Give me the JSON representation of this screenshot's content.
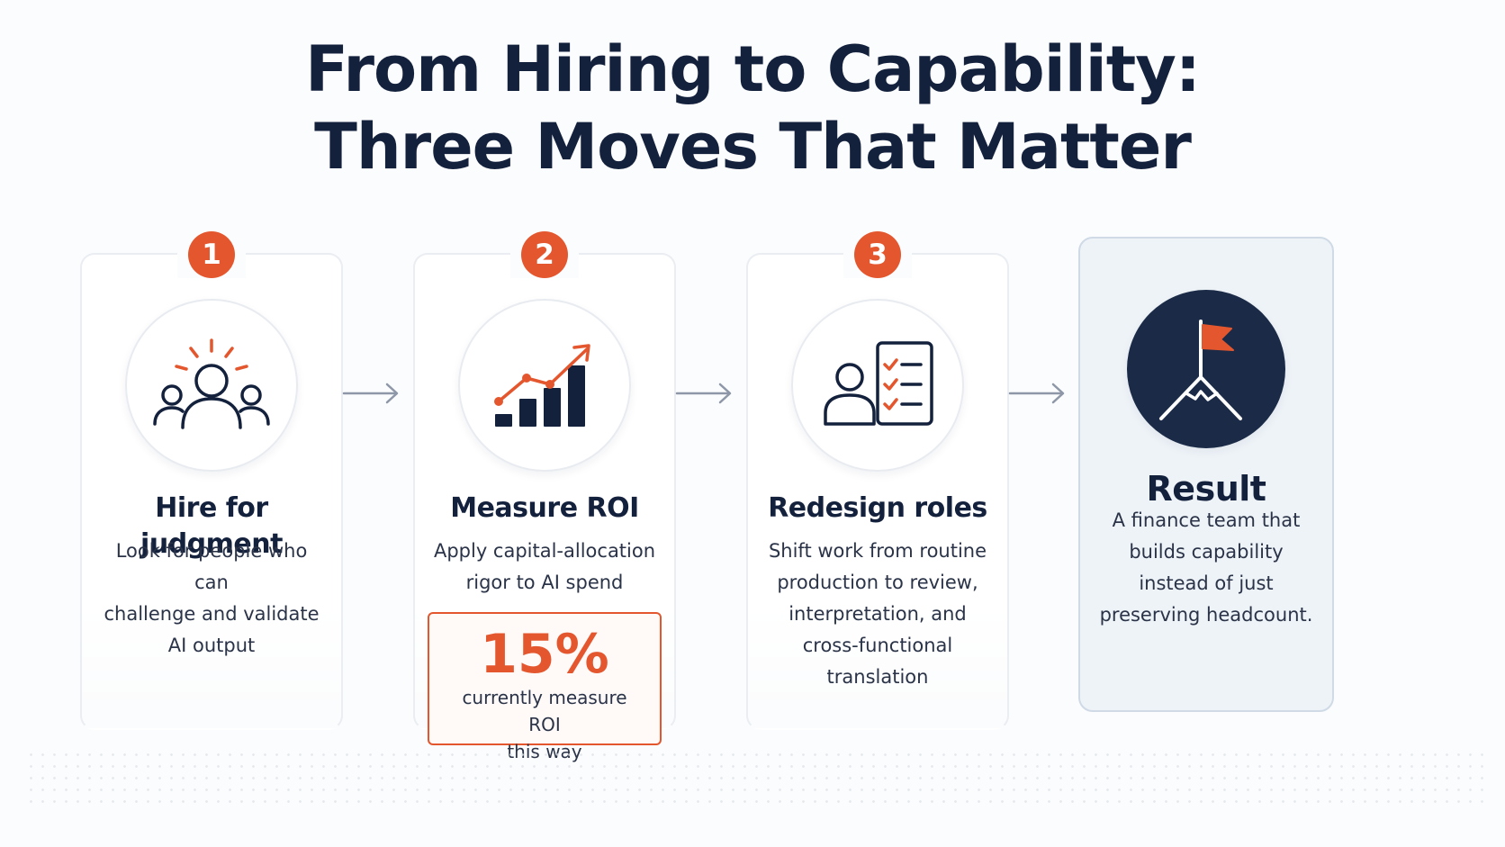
{
  "title": {
    "line1": "From Hiring to Capability:",
    "line2": "Three Moves That Matter"
  },
  "colors": {
    "accent": "#e4572e",
    "navy": "#14213d",
    "result_bg": "#eef3f8"
  },
  "steps": [
    {
      "number": "1",
      "icon": "team-idea-icon",
      "title": "Hire for judgment",
      "description_lines": [
        "Look for people who can",
        "challenge and validate",
        "AI output"
      ]
    },
    {
      "number": "2",
      "icon": "growth-chart-icon",
      "title": "Measure ROI",
      "description_lines": [
        "Apply capital-allocation",
        "rigor to AI spend"
      ],
      "stat": {
        "value": "15%",
        "caption_lines": [
          "currently measure ROI",
          "this way"
        ]
      }
    },
    {
      "number": "3",
      "icon": "person-checklist-icon",
      "title": "Redesign roles",
      "description_lines": [
        "Shift work from routine",
        "production to review,",
        "interpretation, and",
        "cross-functional translation"
      ]
    }
  ],
  "result": {
    "icon": "flag-mountain-icon",
    "title": "Result",
    "description_lines": [
      "A finance team that",
      "builds capability",
      "instead of just",
      "preserving headcount."
    ]
  }
}
